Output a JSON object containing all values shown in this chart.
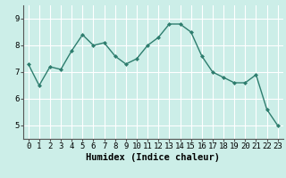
{
  "x": [
    0,
    1,
    2,
    3,
    4,
    5,
    6,
    7,
    8,
    9,
    10,
    11,
    12,
    13,
    14,
    15,
    16,
    17,
    18,
    19,
    20,
    21,
    22,
    23
  ],
  "y": [
    7.3,
    6.5,
    7.2,
    7.1,
    7.8,
    8.4,
    8.0,
    8.1,
    7.6,
    7.3,
    7.5,
    8.0,
    8.3,
    8.8,
    8.8,
    8.5,
    7.6,
    7.0,
    6.8,
    6.6,
    6.6,
    6.9,
    5.6,
    5.0
  ],
  "line_color": "#2e7d6e",
  "marker": "D",
  "marker_size": 2.0,
  "bg_color": "#cceee8",
  "grid_color": "#ffffff",
  "xlabel": "Humidex (Indice chaleur)",
  "ylim": [
    4.5,
    9.5
  ],
  "xlim": [
    -0.5,
    23.5
  ],
  "yticks": [
    5,
    6,
    7,
    8,
    9
  ],
  "xticks": [
    0,
    1,
    2,
    3,
    4,
    5,
    6,
    7,
    8,
    9,
    10,
    11,
    12,
    13,
    14,
    15,
    16,
    17,
    18,
    19,
    20,
    21,
    22,
    23
  ],
  "tick_fontsize": 6.5,
  "xlabel_fontsize": 7.5,
  "line_width": 1.0,
  "spine_color": "#555555"
}
